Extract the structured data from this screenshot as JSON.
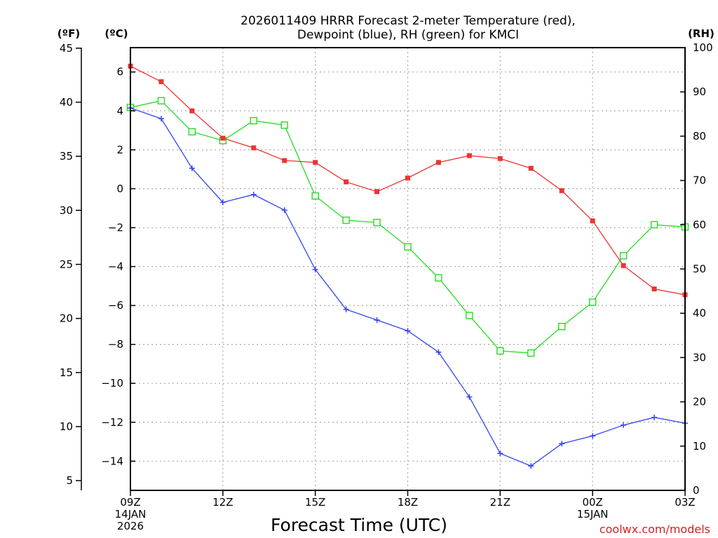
{
  "chart_data": {
    "type": "line",
    "title": [
      "2026011409 HRRR Forecast 2-meter Temperature (red),",
      "Dewpoint (blue), RH (green) for KMCI"
    ],
    "xlabel": "Forecast Time (UTC)",
    "credit": "coolwx.com/models",
    "left_unit_f": "(ºF)",
    "left_unit_c": "(ºC)",
    "right_unit": "(RH)",
    "x_hours": [
      0,
      1,
      2,
      3,
      4,
      5,
      6,
      7,
      8,
      9,
      10,
      11,
      12,
      13,
      14,
      15,
      16,
      17,
      18
    ],
    "x_range": [
      0,
      18
    ],
    "x_ticks": [
      {
        "hour": 0,
        "lines": [
          "09Z",
          "14JAN",
          "2026"
        ]
      },
      {
        "hour": 3,
        "lines": [
          "12Z"
        ]
      },
      {
        "hour": 6,
        "lines": [
          "15Z"
        ]
      },
      {
        "hour": 9,
        "lines": [
          "18Z"
        ]
      },
      {
        "hour": 12,
        "lines": [
          "21Z"
        ]
      },
      {
        "hour": 15,
        "lines": [
          "00Z",
          "15JAN"
        ]
      },
      {
        "hour": 18,
        "lines": [
          "03Z"
        ]
      }
    ],
    "celsius_range": [
      -15.5,
      7.25
    ],
    "celsius_ticks": [
      6,
      4,
      2,
      0,
      -2,
      -4,
      -6,
      -8,
      -10,
      -12,
      -14
    ],
    "fahrenheit_ticks": [
      45,
      40,
      35,
      30,
      25,
      20,
      15,
      10,
      5
    ],
    "rh_range": [
      0,
      100
    ],
    "rh_ticks": [
      100,
      90,
      80,
      70,
      60,
      50,
      40,
      30,
      20,
      10,
      0
    ],
    "series": [
      {
        "name": "Temperature",
        "unit": "C",
        "color": "#ee3333",
        "marker": "filled-square",
        "values": [
          6.3,
          5.5,
          4.0,
          2.6,
          2.1,
          1.45,
          1.35,
          0.35,
          -0.15,
          0.55,
          1.35,
          1.7,
          1.55,
          1.05,
          -0.1,
          -1.65,
          -3.95,
          -5.15,
          -5.45
        ]
      },
      {
        "name": "Dewpoint",
        "unit": "C",
        "color": "#3344ee",
        "marker": "plus",
        "values": [
          4.15,
          3.6,
          1.05,
          -0.7,
          -0.3,
          -1.1,
          -4.15,
          -6.2,
          -6.75,
          -7.3,
          -8.4,
          -10.7,
          -13.6,
          -14.25,
          -13.1,
          -12.7,
          -12.15,
          -11.75,
          -12.05
        ]
      },
      {
        "name": "RH",
        "unit": "%",
        "color": "#22dd22",
        "marker": "open-square",
        "values": [
          86.5,
          88.0,
          81.0,
          79.0,
          83.5,
          82.5,
          66.5,
          61.0,
          60.5,
          55.0,
          48.0,
          39.5,
          31.5,
          31.0,
          37.0,
          42.5,
          53.0,
          60.0,
          59.5
        ]
      }
    ]
  }
}
